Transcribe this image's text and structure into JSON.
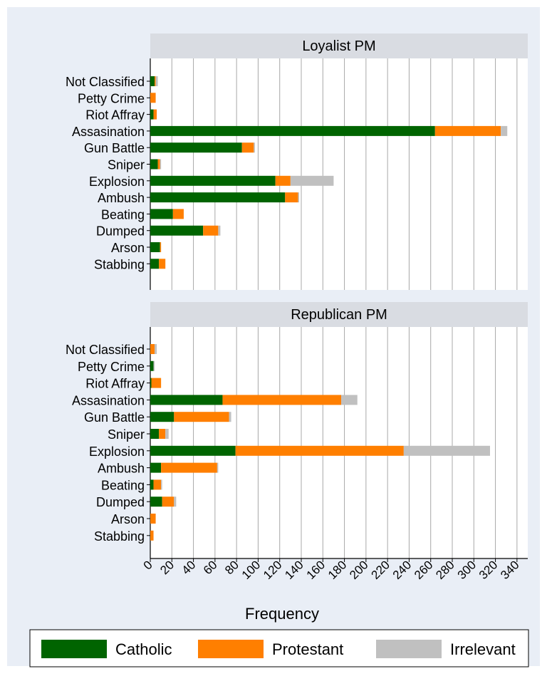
{
  "chart_data": {
    "type": "bar",
    "orientation": "horizontal",
    "stacked": true,
    "xlabel": "Frequency",
    "xlim": [
      0,
      350
    ],
    "xticks": [
      0,
      20,
      40,
      60,
      80,
      100,
      120,
      140,
      160,
      180,
      200,
      220,
      240,
      260,
      280,
      300,
      320,
      340
    ],
    "grid": true,
    "legend_position": "bottom",
    "categories": [
      "Not Classified",
      "Petty Crime",
      "Riot Affray",
      "Assasination",
      "Gun Battle",
      "Sniper",
      "Explosion",
      "Ambush",
      "Beating",
      "Dumped",
      "Arson",
      "Stabbing"
    ],
    "series_names": [
      "Catholic",
      "Protestant",
      "Irrelevant"
    ],
    "colors": [
      "#006400",
      "#ff7f00",
      "#c0c0c0"
    ],
    "panels": [
      {
        "title": "Loyalist PM",
        "series": [
          {
            "name": "Catholic",
            "values": [
              4,
              0,
              3,
              264,
              85,
              7,
              116,
              125,
              21,
              49,
              9,
              8
            ]
          },
          {
            "name": "Protestant",
            "values": [
              1,
              5,
              3,
              61,
              11,
              2,
              14,
              12,
              10,
              14,
              1,
              6
            ]
          },
          {
            "name": "Irrelevant",
            "values": [
              2,
              0,
              0,
              6,
              1,
              1,
              40,
              1,
              0,
              2,
              0,
              0
            ]
          }
        ]
      },
      {
        "title": "Republican PM",
        "series": [
          {
            "name": "Catholic",
            "values": [
              0,
              3,
              1,
              67,
              22,
              8,
              79,
              10,
              3,
              11,
              0,
              0
            ]
          },
          {
            "name": "Protestant",
            "values": [
              4,
              0,
              9,
              110,
              51,
              6,
              156,
              52,
              7,
              11,
              5,
              3
            ]
          },
          {
            "name": "Irrelevant",
            "values": [
              2,
              1,
              0,
              15,
              2,
              3,
              80,
              1,
              1,
              2,
              0,
              0
            ]
          }
        ]
      }
    ]
  }
}
